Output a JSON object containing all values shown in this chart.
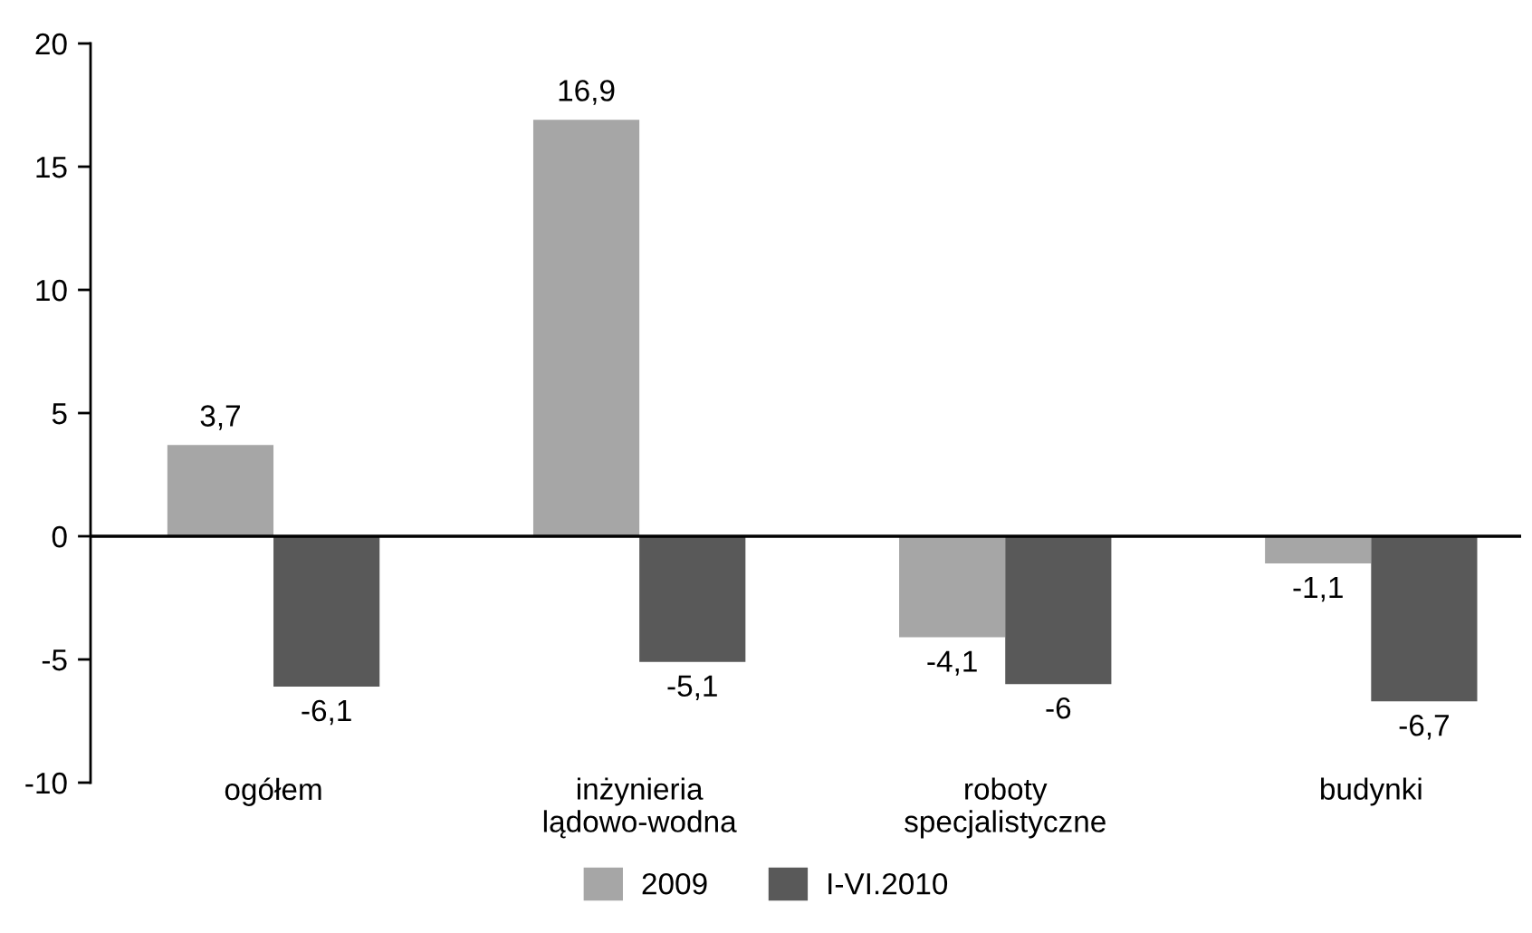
{
  "chart_data": {
    "type": "bar",
    "categories": [
      "ogółem",
      "inżynieria\nlądowo-wodna",
      "roboty\nspecjalistyczne",
      "budynki"
    ],
    "series": [
      {
        "name": "2009",
        "color": "#a6a6a6",
        "values": [
          3.7,
          16.9,
          -4.1,
          -1.1
        ],
        "value_labels": [
          "3,7",
          "16,9",
          "-4,1",
          "-1,1"
        ]
      },
      {
        "name": "I-VI.2010",
        "color": "#595959",
        "values": [
          -6.1,
          -5.1,
          -6,
          -6.7
        ],
        "value_labels": [
          "-6,1",
          "-5,1",
          "-6",
          "-6,7"
        ]
      }
    ],
    "ylim": [
      -10,
      20
    ],
    "yticks": [
      -10,
      -5,
      0,
      5,
      10,
      15,
      20
    ],
    "ref_lines": [
      {
        "axis": "y",
        "value": 0,
        "color": "#000000",
        "line_style": "solid"
      }
    ],
    "grid": false,
    "legend": "bottom"
  }
}
